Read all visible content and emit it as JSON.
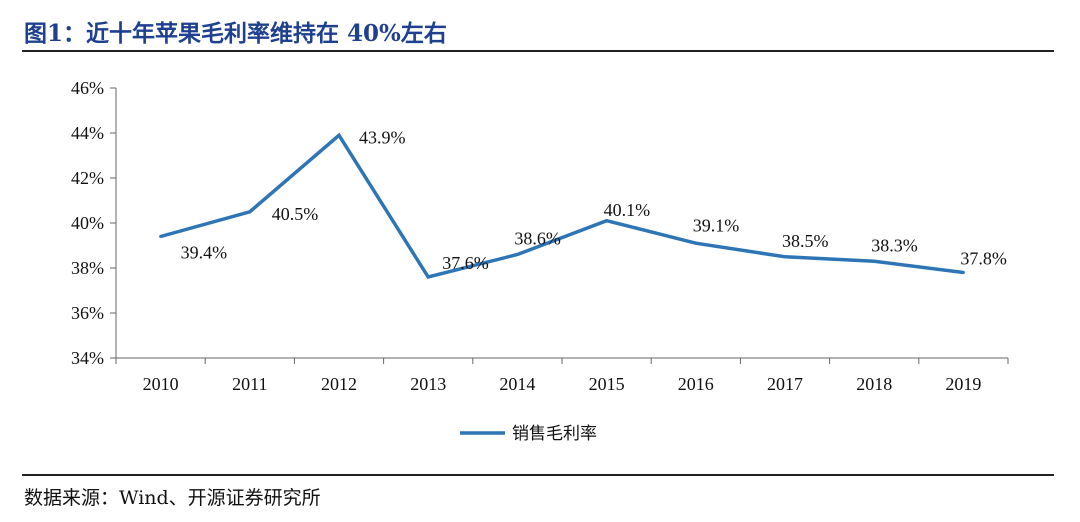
{
  "title": "图1：近十年苹果毛利率维持在 40%左右",
  "source": "数据来源：Wind、开源证券研究所",
  "chart_data": {
    "type": "line",
    "categories": [
      "2010",
      "2011",
      "2012",
      "2013",
      "2014",
      "2015",
      "2016",
      "2017",
      "2018",
      "2019"
    ],
    "series": [
      {
        "name": "销售毛利率",
        "values": [
          39.4,
          40.5,
          43.9,
          37.6,
          38.6,
          40.1,
          39.1,
          38.5,
          38.3,
          37.8
        ],
        "labels": [
          "39.4%",
          "40.5%",
          "43.9%",
          "37.6%",
          "38.6%",
          "40.1%",
          "39.1%",
          "38.5%",
          "38.3%",
          "37.8%"
        ],
        "color": "#2e75b6"
      }
    ],
    "ylim": [
      34,
      46
    ],
    "yticks": [
      "34%",
      "36%",
      "38%",
      "40%",
      "42%",
      "44%",
      "46%"
    ],
    "ytick_values": [
      34,
      36,
      38,
      40,
      42,
      44,
      46
    ],
    "grid": false,
    "legend": "bottom-center"
  }
}
